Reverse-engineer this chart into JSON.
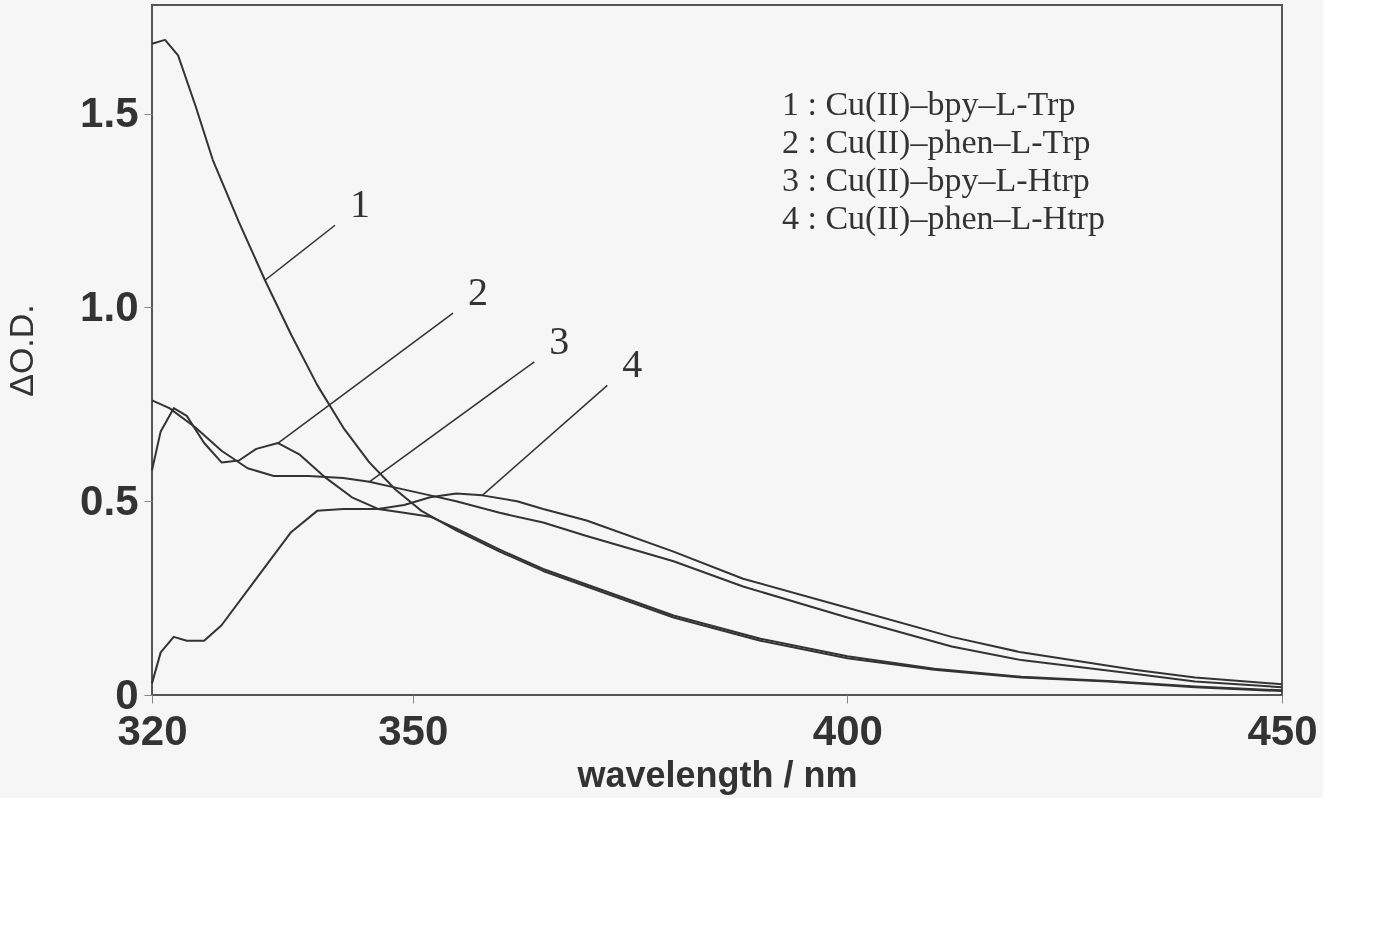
{
  "chart_data": {
    "type": "line",
    "xlabel": "wavelength / nm",
    "ylabel": "ΔO.D.",
    "xlim": [
      320,
      450
    ],
    "xticks": [
      320,
      350,
      400,
      450
    ],
    "ylim": [
      0,
      1.78
    ],
    "yticks": [
      {
        "value": 0,
        "label": "0"
      },
      {
        "value": 0.5,
        "label": "0.5"
      },
      {
        "value": 1,
        "label": "1.0"
      },
      {
        "value": 1.5,
        "label": "1.5"
      }
    ],
    "grid": false,
    "marker": "none",
    "line_style": "solid",
    "series": [
      {
        "name": "1",
        "color": "#333333",
        "x": [
          320,
          321.5,
          323,
          325,
          327,
          330,
          333,
          336,
          339,
          342,
          345,
          348,
          351,
          355,
          360,
          365,
          370,
          380,
          390,
          400,
          410,
          420,
          430,
          440,
          450
        ],
        "values": [
          1.68,
          1.69,
          1.65,
          1.52,
          1.38,
          1.22,
          1.07,
          0.93,
          0.8,
          0.69,
          0.6,
          0.53,
          0.475,
          0.425,
          0.37,
          0.32,
          0.28,
          0.2,
          0.14,
          0.095,
          0.065,
          0.045,
          0.035,
          0.02,
          0.01
        ]
      },
      {
        "name": "2",
        "color": "#333333",
        "x": [
          320,
          321,
          322.5,
          324,
          326,
          328,
          330,
          332,
          334.5,
          337,
          340,
          343,
          346,
          349,
          352,
          355,
          360,
          365,
          370,
          380,
          390,
          400,
          410,
          420,
          430,
          440,
          450
        ],
        "values": [
          0.58,
          0.68,
          0.74,
          0.72,
          0.65,
          0.6,
          0.605,
          0.635,
          0.65,
          0.62,
          0.56,
          0.51,
          0.48,
          0.47,
          0.46,
          0.43,
          0.375,
          0.325,
          0.285,
          0.205,
          0.145,
          0.1,
          0.068,
          0.047,
          0.036,
          0.022,
          0.012
        ]
      },
      {
        "name": "3",
        "color": "#333333",
        "x": [
          320,
          322,
          325,
          328,
          331,
          334,
          338,
          342,
          345,
          348,
          352,
          355,
          360,
          365,
          370,
          380,
          388,
          400,
          412,
          420,
          433,
          440,
          450
        ],
        "values": [
          0.76,
          0.74,
          0.69,
          0.63,
          0.585,
          0.565,
          0.565,
          0.56,
          0.55,
          0.535,
          0.515,
          0.5,
          0.47,
          0.445,
          0.41,
          0.345,
          0.28,
          0.2,
          0.125,
          0.09,
          0.055,
          0.035,
          0.02
        ]
      },
      {
        "name": "4",
        "color": "#333333",
        "x": [
          320,
          321,
          322.5,
          324,
          326,
          328,
          332,
          336,
          339,
          342,
          346,
          349,
          352,
          355,
          358,
          362,
          365,
          370,
          380,
          388,
          400,
          412,
          420,
          433,
          440,
          450
        ],
        "values": [
          0.03,
          0.11,
          0.15,
          0.14,
          0.14,
          0.18,
          0.3,
          0.42,
          0.475,
          0.48,
          0.48,
          0.49,
          0.51,
          0.52,
          0.515,
          0.5,
          0.48,
          0.45,
          0.37,
          0.3,
          0.225,
          0.15,
          0.11,
          0.065,
          0.045,
          0.028
        ]
      }
    ],
    "annotations": [
      "1 : Cu(II)–bpy–L-Trp",
      "2 : Cu(II)–phen–L-Trp",
      "3 : Cu(II)–bpy–L-Htrp",
      "4 : Cu(II)–phen–L-Htrp"
    ]
  }
}
